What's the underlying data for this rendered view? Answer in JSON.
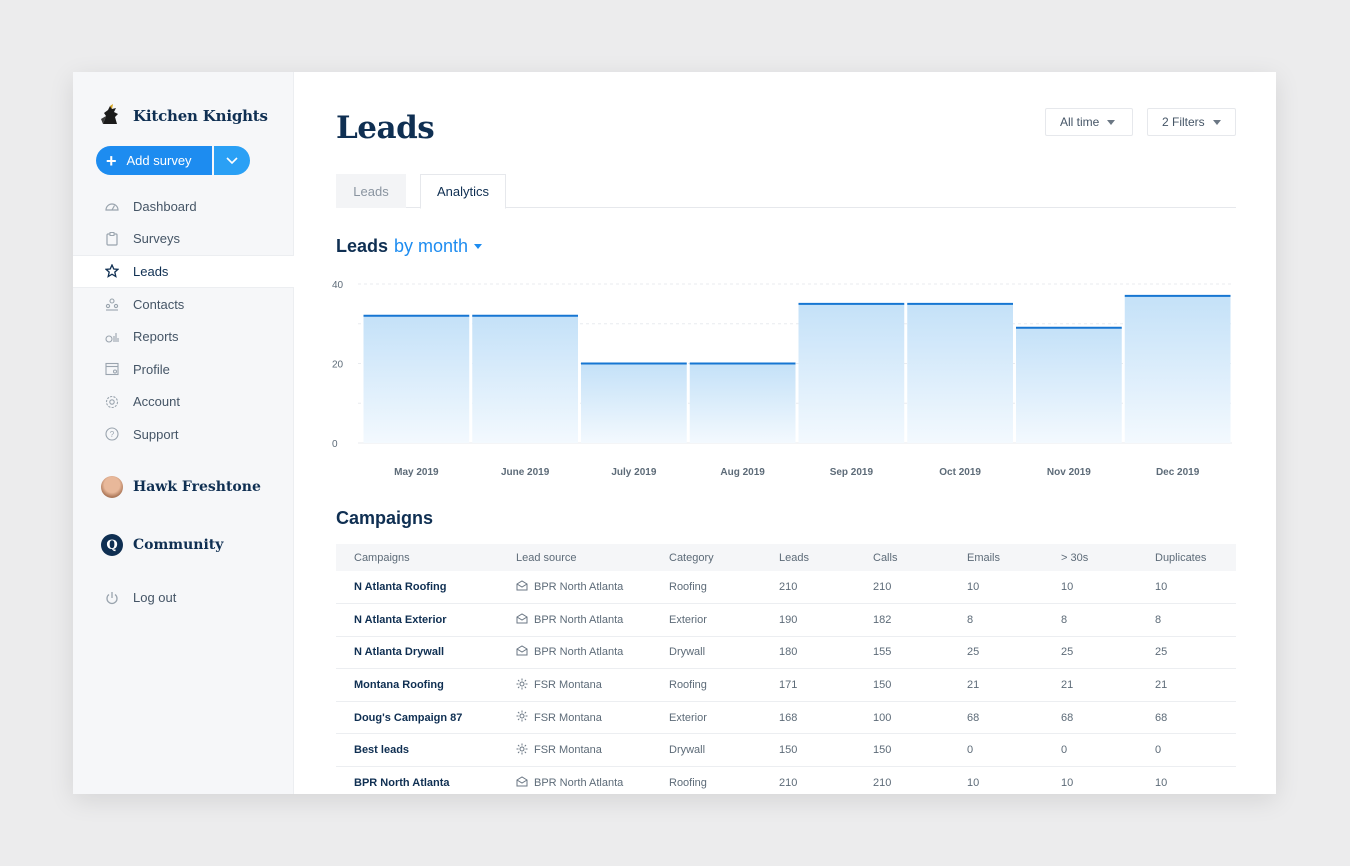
{
  "brand": {
    "name": "Kitchen Knights"
  },
  "add_survey": {
    "label": "Add survey"
  },
  "sidebar": {
    "items": [
      {
        "label": "Dashboard",
        "icon": "dashboard-icon"
      },
      {
        "label": "Surveys",
        "icon": "surveys-icon"
      },
      {
        "label": "Leads",
        "icon": "leads-icon",
        "active": true
      },
      {
        "label": "Contacts",
        "icon": "contacts-icon"
      },
      {
        "label": "Reports",
        "icon": "reports-icon"
      },
      {
        "label": "Profile",
        "icon": "profile-icon"
      },
      {
        "label": "Account",
        "icon": "account-icon"
      },
      {
        "label": "Support",
        "icon": "support-icon"
      }
    ],
    "user_name": "Hawk Freshtone",
    "community_label": "Community",
    "community_icon_letter": "Q",
    "logout_label": "Log out"
  },
  "header": {
    "title": "Leads",
    "filters": {
      "time": "All time",
      "count": "2 Filters"
    }
  },
  "tabs": [
    {
      "label": "Leads"
    },
    {
      "label": "Analytics",
      "active": true
    }
  ],
  "chart_section": {
    "title": "Leads",
    "title_accent": "by month"
  },
  "chart_data": {
    "type": "bar",
    "categories": [
      "May 2019",
      "June 2019",
      "July 2019",
      "Aug 2019",
      "Sep 2019",
      "Oct 2019",
      "Nov 2019",
      "Dec 2019"
    ],
    "values": [
      32,
      32,
      20,
      20,
      35,
      35,
      29,
      37
    ],
    "ylim": [
      0,
      40
    ],
    "yticks": [
      0,
      20,
      40
    ],
    "grid": true,
    "colors": {
      "fill_top": "#c4e1f8",
      "fill_bottom": "#f3f9fe",
      "line": "#1676d2"
    }
  },
  "campaigns": {
    "title": "Campaigns",
    "columns": [
      "Campaigns",
      "Lead source",
      "Category",
      "Leads",
      "Calls",
      "Emails",
      "> 30s",
      "Duplicates"
    ],
    "rows": [
      {
        "name": "N Atlanta Roofing",
        "source": "BPR North Atlanta",
        "source_icon": "mail-icon",
        "category": "Roofing",
        "leads": "210",
        "calls": "210",
        "emails": "10",
        "over30": "10",
        "duplicates": "10"
      },
      {
        "name": "N Atlanta Exterior",
        "source": "BPR North Atlanta",
        "source_icon": "mail-icon",
        "category": "Exterior",
        "leads": "190",
        "calls": "182",
        "emails": "8",
        "over30": "8",
        "duplicates": "8"
      },
      {
        "name": "N Atlanta Drywall",
        "source": "BPR North Atlanta",
        "source_icon": "mail-icon",
        "category": "Drywall",
        "leads": "180",
        "calls": "155",
        "emails": "25",
        "over30": "25",
        "duplicates": "25"
      },
      {
        "name": "Montana Roofing",
        "source": "FSR Montana",
        "source_icon": "burst-icon",
        "category": "Roofing",
        "leads": "171",
        "calls": "150",
        "emails": "21",
        "over30": "21",
        "duplicates": "21"
      },
      {
        "name": "Doug's Campaign 87",
        "source": "FSR Montana",
        "source_icon": "burst-icon",
        "category": "Exterior",
        "leads": "168",
        "calls": "100",
        "emails": "68",
        "over30": "68",
        "duplicates": "68"
      },
      {
        "name": "Best leads",
        "source": "FSR Montana",
        "source_icon": "burst-icon",
        "category": "Drywall",
        "leads": "150",
        "calls": "150",
        "emails": "0",
        "over30": "0",
        "duplicates": "0"
      },
      {
        "name": "BPR North Atlanta",
        "source": "BPR North Atlanta",
        "source_icon": "mail-icon",
        "category": "Roofing",
        "leads": "210",
        "calls": "210",
        "emails": "10",
        "over30": "10",
        "duplicates": "10"
      }
    ]
  }
}
